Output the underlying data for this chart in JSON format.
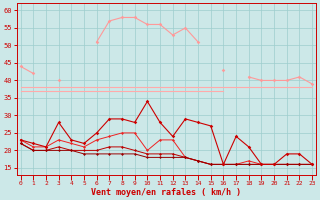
{
  "x": [
    0,
    1,
    2,
    3,
    4,
    5,
    6,
    7,
    8,
    9,
    10,
    11,
    12,
    13,
    14,
    15,
    16,
    17,
    18,
    19,
    20,
    21,
    22,
    23
  ],
  "rafales": [
    44,
    42,
    null,
    40,
    null,
    null,
    51,
    57,
    58,
    58,
    56,
    56,
    53,
    55,
    51,
    null,
    43,
    null,
    41,
    40,
    40,
    40,
    41,
    39
  ],
  "flat1": [
    38,
    38,
    38,
    38,
    38,
    38,
    38,
    38,
    38,
    38,
    38,
    38,
    38,
    38,
    38,
    38,
    38,
    38,
    38,
    38,
    38,
    38,
    38,
    38
  ],
  "flat2": [
    37,
    37,
    37,
    37,
    37,
    37,
    37,
    37,
    37,
    37,
    37,
    37,
    37,
    37,
    37,
    37,
    37,
    null,
    null,
    null,
    null,
    null,
    null,
    null
  ],
  "moyen1": [
    23,
    22,
    21,
    28,
    23,
    22,
    25,
    29,
    29,
    28,
    34,
    28,
    24,
    29,
    28,
    27,
    16,
    24,
    21,
    16,
    16,
    19,
    19,
    16
  ],
  "moyen2": [
    23,
    21,
    21,
    23,
    22,
    21,
    23,
    24,
    25,
    25,
    20,
    23,
    23,
    18,
    17,
    16,
    16,
    16,
    17,
    16,
    16,
    16,
    16,
    16
  ],
  "moyen3": [
    22,
    20,
    20,
    21,
    20,
    20,
    20,
    21,
    21,
    20,
    19,
    19,
    19,
    18,
    17,
    16,
    16,
    16,
    16,
    16,
    16,
    16,
    16,
    16
  ],
  "moyen4": [
    22,
    20,
    20,
    20,
    20,
    19,
    19,
    19,
    19,
    19,
    18,
    18,
    18,
    18,
    17,
    16,
    16,
    16,
    16,
    16,
    16,
    16,
    16,
    16
  ],
  "bg_color": "#cce8e8",
  "grid_color": "#9ecece",
  "color_light": "#ff9999",
  "color_flat": "#ffaaaa",
  "color_dark1": "#cc0000",
  "color_dark2": "#ee2222",
  "color_dark3": "#bb0000",
  "color_dark4": "#990000",
  "xlabel": "Vent moyen/en rafales ( km/h )",
  "ylim": [
    13,
    62
  ],
  "xlim": [
    -0.3,
    23.3
  ],
  "yticks": [
    15,
    20,
    25,
    30,
    35,
    40,
    45,
    50,
    55,
    60
  ]
}
